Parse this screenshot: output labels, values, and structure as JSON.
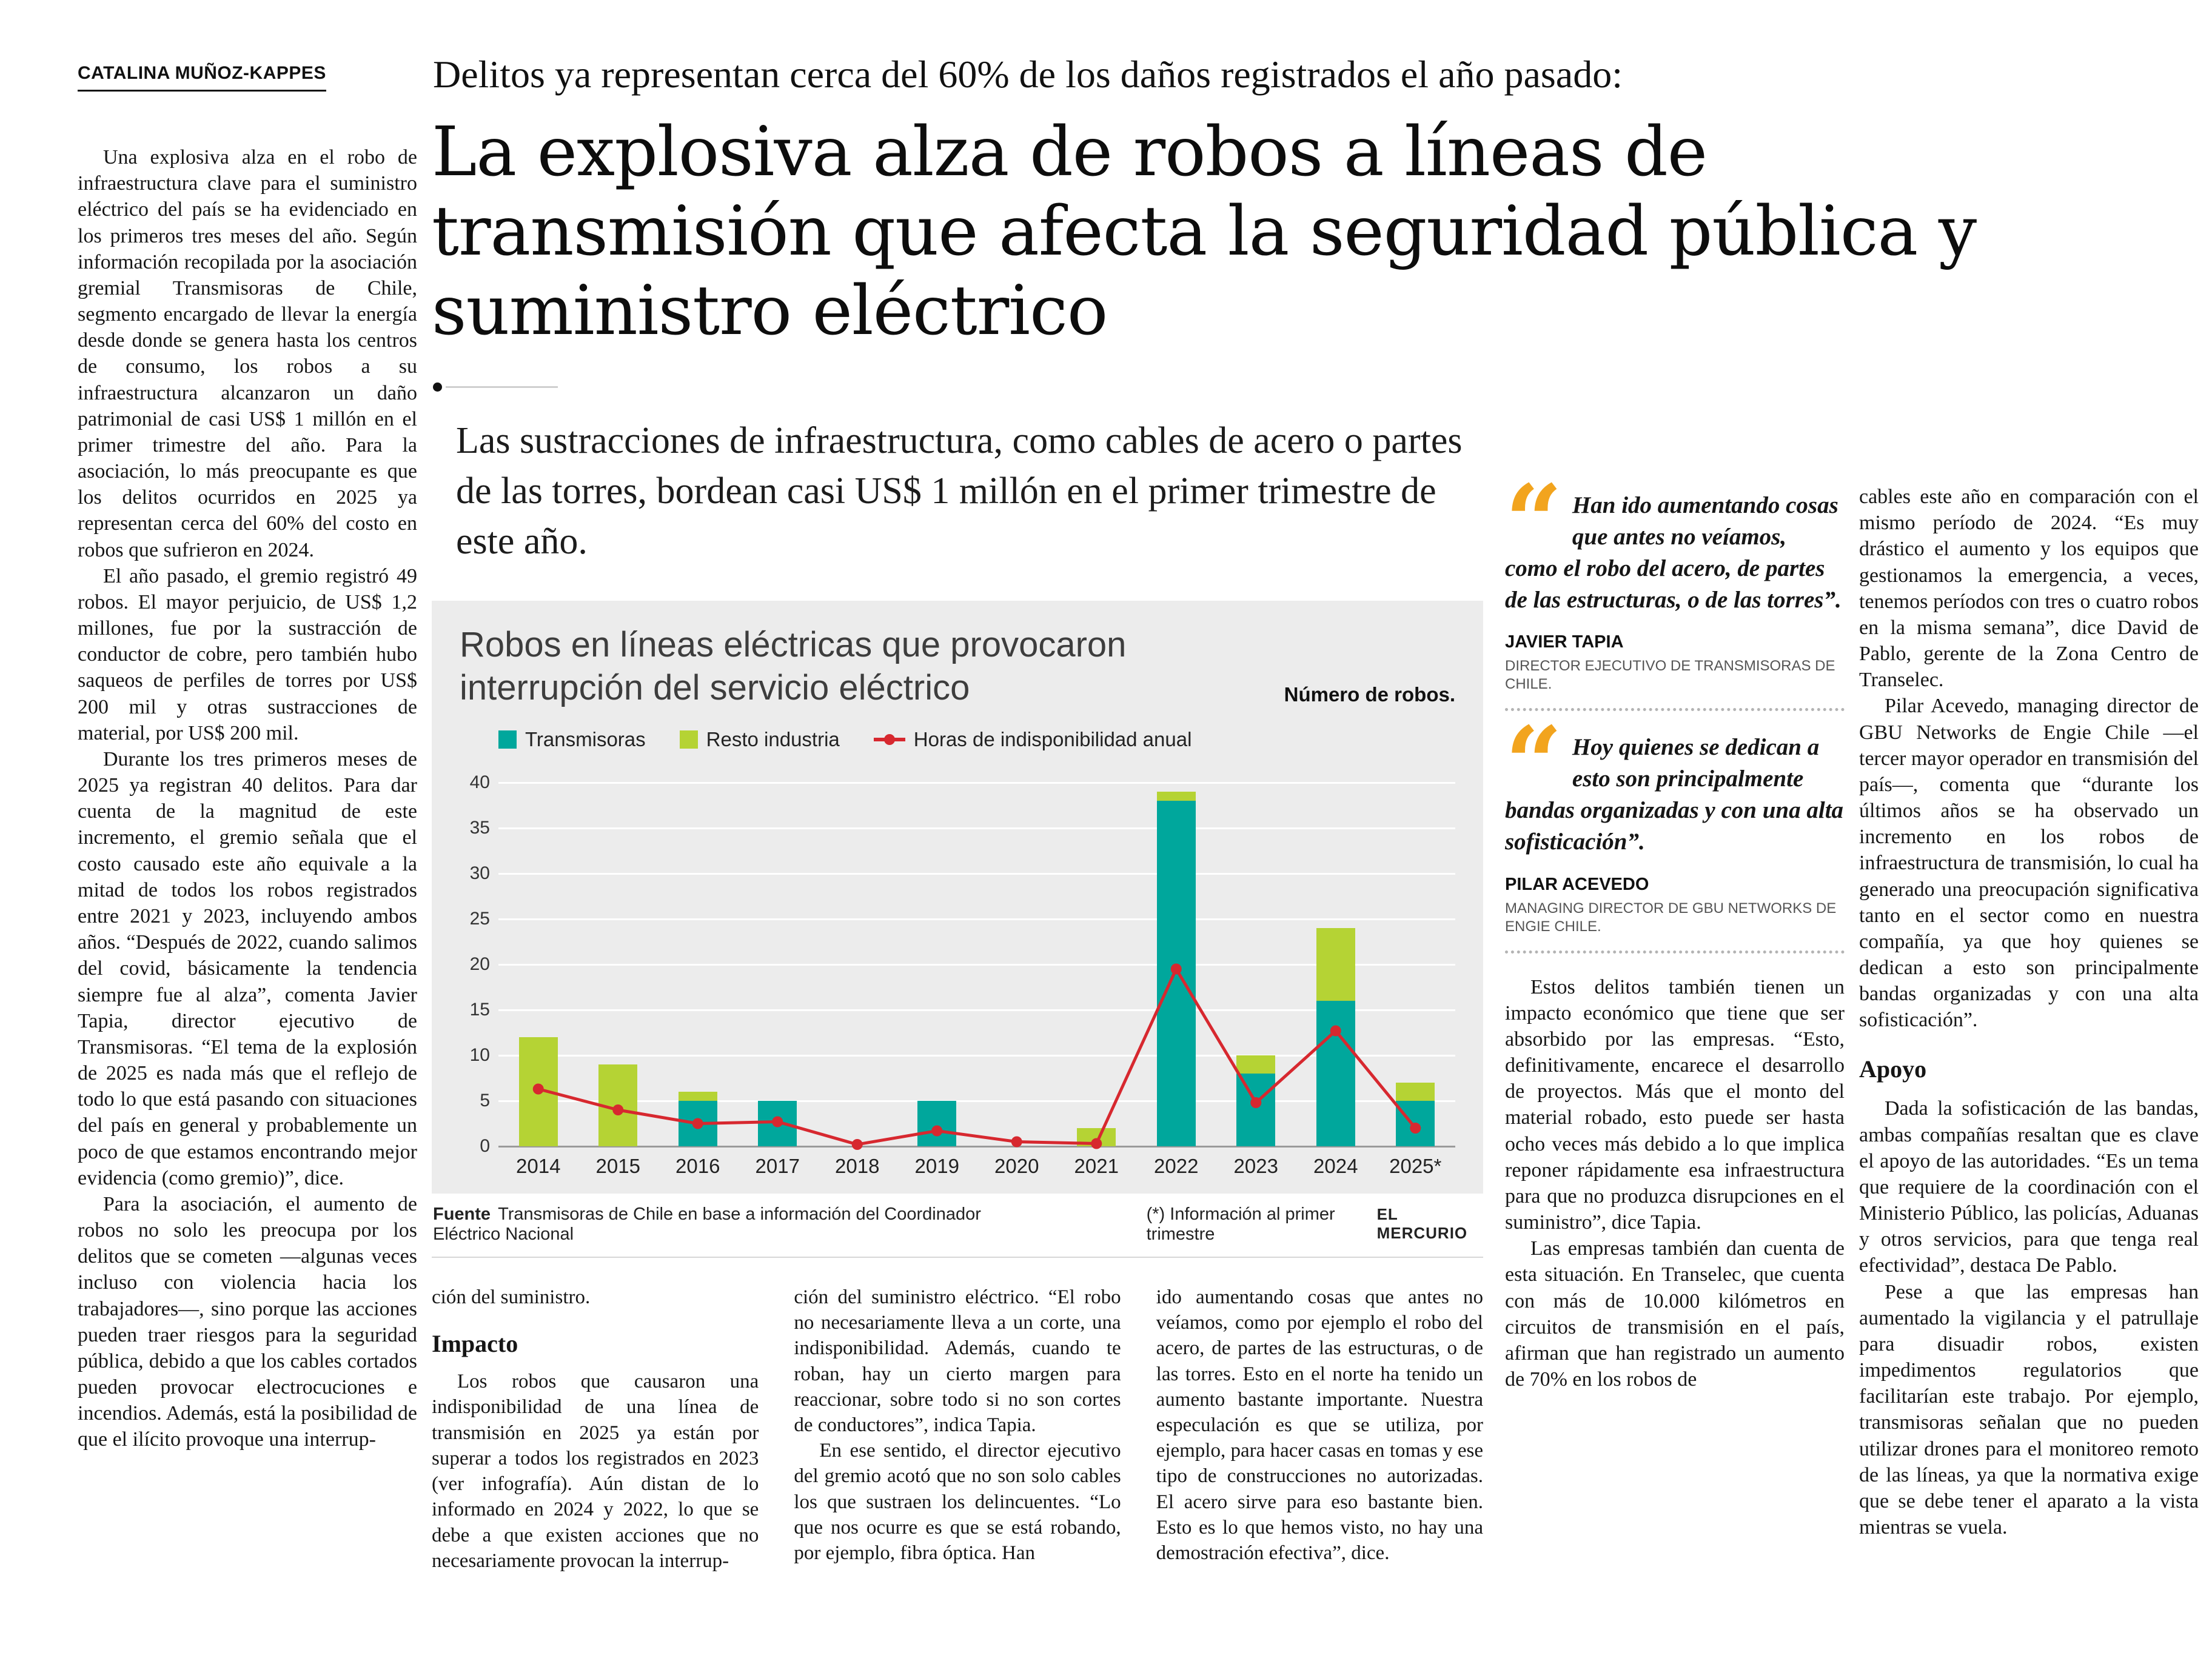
{
  "masthead": {
    "byline": "CATALINA MUÑOZ-KAPPES"
  },
  "header": {
    "kicker": "Delitos ya representan cerca del 60% de los daños registrados el año pasado:",
    "headline": "La explosiva alza de robos a líneas de transmisión que afecta la seguridad pública y suministro eléctrico",
    "deck": "Las sustracciones de infraestructura, como cables de acero o partes de las torres, bordean casi US$ 1 millón en el primer trimestre de este año."
  },
  "article": {
    "left_column": [
      "Una explosiva alza en el robo de infraestructura clave para el suministro eléctrico del país se ha evidenciado en los primeros tres meses del año. Según información recopilada por la asociación gremial Transmisoras de Chile, segmento encargado de llevar la energía desde donde se genera hasta los centros de consumo, los robos a su infraestructura alcanzaron un daño patrimonial de casi US$ 1 millón en el primer trimestre del año. Para la asociación, lo más preocupante es que los delitos ocurridos en 2025 ya representan cerca del 60% del costo en robos que sufrieron en 2024.",
      "El año pasado, el gremio registró 49 robos. El mayor perjuicio, de US$ 1,2 millones, fue por la sustracción de conductor de cobre, pero también hubo saqueos de perfiles de torres por US$ 200 mil y otras sustracciones de material, por US$ 200 mil.",
      "Durante los tres primeros meses de 2025 ya registran 40 delitos. Para dar cuenta de la magnitud de este incremento, el gremio señala que el costo causado este año equivale a la mitad de todos los robos registrados entre 2021 y 2023, incluyendo ambos años. “Después de 2022, cuando salimos del covid, básicamente la tendencia siempre fue al alza”, comenta Javier Tapia, director ejecutivo de Transmisoras. “El tema de la explosión de 2025 es nada más que el reflejo de todo lo que está pasando con situaciones del país en general y probablemente un poco de que estamos encontrando mejor evidencia (como gremio)”, dice.",
      "Para la asociación, el aumento de robos no solo les preocupa por los delitos que se cometen —algunas veces incluso con violencia hacia los trabajadores—, sino porque las acciones pueden traer riesgos para la seguridad pública, debido a que los cables cortados pueden provocar electrocuciones e incendios. Además, está la posibilidad de que el ilícito provoque una interrup-"
    ],
    "colA_p1": "ción del suministro.",
    "colA_subhead": "Impacto",
    "colA_p2": "Los robos que causaron una indisponibilidad de una línea de transmisión en 2025 ya están por superar a todos los registrados en 2023 (ver infografía). Aún distan de lo informado en 2024 y 2022, lo que se debe a que existen acciones que no necesariamente provocan la interrup-",
    "colB": [
      "ción del suministro eléctrico. “El robo no necesariamente lleva a un corte, una indisponibilidad. Además, cuando te roban, hay un cierto margen para reaccionar, sobre todo si no son cortes de conductores”, indica Tapia.",
      "En ese sentido, el director ejecutivo del gremio acotó que no son solo cables los que sustraen los delincuentes. “Lo que nos ocurre es que se está robando, por ejemplo, fibra óptica. Han"
    ],
    "colC": [
      "ido aumentando cosas que antes no veíamos, como por ejemplo el robo del acero, de partes de las estructuras, o de las torres. Esto en el norte ha tenido un aumento bastante importante. Nuestra especulación es que se utiliza, por ejemplo, para hacer casas en tomas y ese tipo de construcciones no autorizadas. El acero sirve para eso bastante bien. Esto es lo que hemos visto, no hay una demostración efectiva”, dice."
    ],
    "col4_body": [
      "Estos delitos también tienen un impacto económico que tiene que ser absorbido por las empresas. “Esto, definitivamente, encarece el desarrollo de proyectos. Más que el monto del material robado, esto puede ser hasta ocho veces más debido a lo que implica reponer rápidamente esa infraestructura para que no produzca disrupciones en el suministro”, dice Tapia.",
      "Las empresas también dan cuenta de esta situación. En Transelec, que cuenta con más de 10.000 kilómetros en circuitos de transmisión en el país, afirman que han registrado un aumento de 70% en los robos de"
    ],
    "col5_before": [
      "cables este año en comparación con el mismo período de 2024. “Es muy drástico el aumento y los equipos que gestionamos la emergencia, a veces, tenemos períodos con tres o cuatro robos en la misma semana”, dice David de Pablo, gerente de la Zona Centro de Transelec.",
      "Pilar Acevedo, managing director de GBU Networks de Engie Chile —el tercer mayor operador en transmisión del país—, comenta que “durante los últimos años se ha observado un incremento en los robos de infraestructura de transmisión, lo cual ha generado una preocupación significativa tanto en el sector como en nuestra compañía, ya que hoy quienes se dedican a esto son principalmente bandas organizadas y con una alta sofisticación”."
    ],
    "col5_subhead": "Apoyo",
    "col5_after": [
      "Dada la sofisticación de las bandas, ambas compañías resaltan que es clave el apoyo de las autoridades. “Es un tema que requiere de la coordinación con el Ministerio Público, las policías, Aduanas y otros servicios, para que tenga real efectividad”, destaca De Pablo.",
      "Pese a que las empresas han aumentado la vigilancia y el patrullaje para disuadir robos, existen impedimentos regulatorios que facilitarían este trabajo. Por ejemplo, transmisoras señalan que no pueden utilizar drones para el monitoreo remoto de las líneas, ya que la normativa exige que se debe tener el aparato a la vista mientras se vuela."
    ]
  },
  "quotes": [
    {
      "mark": "“",
      "text": "Han ido aumentando cosas que antes no veíamos, como el robo del acero, de partes de las estructuras, o de las torres”.",
      "name": "JAVIER TAPIA",
      "role": "DIRECTOR EJECUTIVO DE TRANSMISORAS DE CHILE."
    },
    {
      "mark": "“",
      "text": "Hoy quienes se dedican a esto son principalmente bandas organizadas y con una alta sofisticación”.",
      "name": "PILAR ACEVEDO",
      "role": "MANAGING DIRECTOR DE GBU NETWORKS DE ENGIE CHILE."
    }
  ],
  "chart_data": {
    "type": "bar",
    "stacked": true,
    "title": "Robos en líneas eléctricas que provocaron interrupción del servicio eléctrico",
    "unit_label": "Número de robos.",
    "categories": [
      "2014",
      "2015",
      "2016",
      "2017",
      "2018",
      "2019",
      "2020",
      "2021",
      "2022",
      "2023",
      "2024",
      "2025*"
    ],
    "series": [
      {
        "name": "Transmisoras",
        "type": "bar",
        "color": "#00a79c",
        "values": [
          0,
          0,
          5,
          5,
          0,
          5,
          0,
          0,
          38,
          8,
          16,
          5
        ]
      },
      {
        "name": "Resto industria",
        "type": "bar",
        "color": "#b5d334",
        "values": [
          12,
          9,
          1,
          0,
          0,
          0,
          0,
          2,
          1,
          2,
          8,
          2
        ]
      },
      {
        "name": "Horas de indisponibilidad anual",
        "type": "line",
        "color": "#d7282f",
        "values": [
          6.3,
          4,
          2.5,
          2.7,
          0.2,
          1.7,
          0.5,
          0.3,
          19.5,
          4.8,
          12.7,
          2
        ]
      }
    ],
    "ylim": [
      0,
      40
    ],
    "yticks": [
      0,
      5,
      10,
      15,
      20,
      25,
      30,
      35,
      40
    ],
    "grid": "horizontal-white-on-gray",
    "legend_position": "top-left",
    "source_prefix": "Fuente",
    "source": "Transmisoras de Chile en base a información del Coordinador Eléctrico Nacional",
    "footnote": "(*) Información al primer trimestre",
    "credit": "EL MERCURIO"
  }
}
